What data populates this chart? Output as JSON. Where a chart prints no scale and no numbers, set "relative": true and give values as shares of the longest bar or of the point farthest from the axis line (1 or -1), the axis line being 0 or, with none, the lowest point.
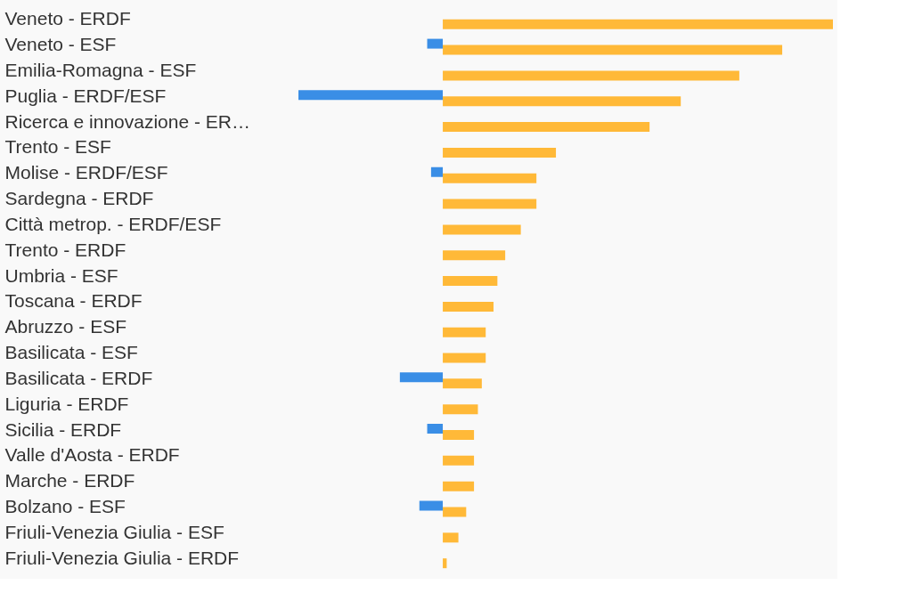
{
  "chart_data": {
    "type": "bar",
    "orientation": "horizontal",
    "relative": true,
    "categories": [
      "Veneto - ERDF",
      "Veneto - ESF",
      "Emilia-Romagna - ESF",
      "Puglia - ERDF/ESF",
      "Ricerca e innovazione - ER…",
      "Trento - ESF",
      "Molise - ERDF/ESF",
      "Sardegna - ERDF",
      "Città metrop. - ERDF/ESF",
      "Trento - ERDF",
      "Umbria - ESF",
      "Toscana - ERDF",
      "Abruzzo - ESF",
      "Basilicata - ESF",
      "Basilicata - ERDF",
      "Liguria - ERDF",
      "Sicilia - ERDF",
      "Valle d'Aosta - ERDF",
      "Marche - ERDF",
      "Bolzano - ESF",
      "Friuli-Venezia Giulia - ESF",
      "Friuli-Venezia Giulia - ERDF"
    ],
    "series": [
      {
        "color": "#3a8ee6",
        "values": [
          null,
          -0.04,
          null,
          -0.37,
          null,
          null,
          -0.03,
          null,
          null,
          null,
          null,
          null,
          null,
          null,
          -0.11,
          null,
          -0.04,
          null,
          null,
          -0.06,
          null,
          null
        ]
      },
      {
        "color": "#ffb938",
        "values": [
          1,
          0.87,
          0.76,
          0.61,
          0.53,
          0.29,
          0.24,
          0.24,
          0.2,
          0.16,
          0.14,
          0.13,
          0.11,
          0.11,
          0.1,
          0.09,
          0.08,
          0.08,
          0.08,
          0.06,
          0.04,
          0.01
        ]
      }
    ]
  }
}
